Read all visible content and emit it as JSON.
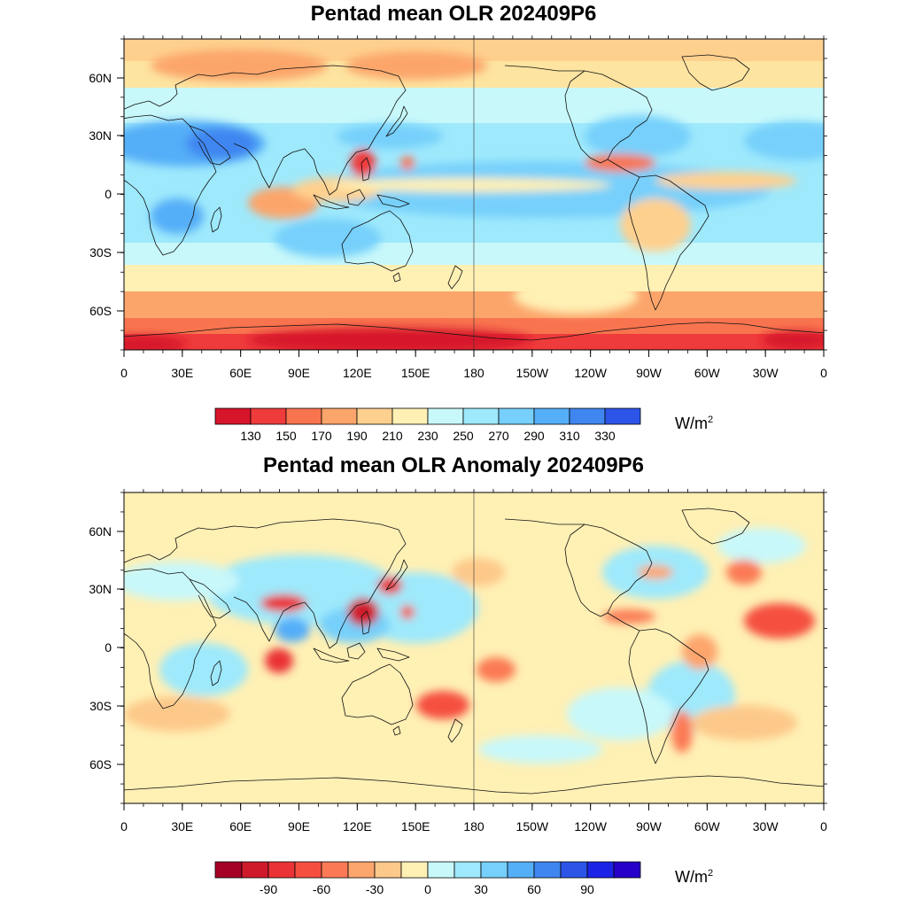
{
  "maps": [
    {
      "title": "Pentad mean OLR 202409P6",
      "lat_ticks": [
        "60N",
        "30N",
        "0",
        "30S",
        "60S"
      ],
      "lon_ticks": [
        "0",
        "30E",
        "60E",
        "90E",
        "120E",
        "150E",
        "180",
        "150W",
        "120W",
        "90W",
        "60W",
        "30W",
        "0"
      ],
      "colorbar": {
        "colors": [
          "#d7152a",
          "#ef3b3b",
          "#f8744f",
          "#fca56b",
          "#fed08e",
          "#fff0b4",
          "#c8f8fa",
          "#9ee9fc",
          "#76d0fb",
          "#55aef8",
          "#3f86f1",
          "#2c55e8"
        ],
        "labels": [
          "130",
          "150",
          "170",
          "190",
          "210",
          "230",
          "250",
          "270",
          "290",
          "310",
          "330"
        ],
        "units_base": "W/m",
        "units_exp": "2"
      }
    },
    {
      "title": "Pentad mean OLR Anomaly 202409P6",
      "lat_ticks": [
        "60N",
        "30N",
        "0",
        "30S",
        "60S"
      ],
      "lon_ticks": [
        "0",
        "30E",
        "60E",
        "90E",
        "120E",
        "150E",
        "180",
        "150W",
        "120W",
        "90W",
        "60W",
        "30W",
        "0"
      ],
      "colorbar": {
        "colors": [
          "#a50026",
          "#cf1a2c",
          "#ea3336",
          "#f5503f",
          "#fb7a55",
          "#fca56d",
          "#fdc98a",
          "#fff0b4",
          "#c8f8fa",
          "#9ee9fc",
          "#76d0fb",
          "#55aef8",
          "#3f86f1",
          "#2c55e8",
          "#1b24e6",
          "#2600c8"
        ],
        "labels": [
          "-90",
          "-60",
          "-30",
          "0",
          "30",
          "60",
          "90"
        ],
        "units_base": "W/m",
        "units_exp": "2"
      }
    }
  ]
}
